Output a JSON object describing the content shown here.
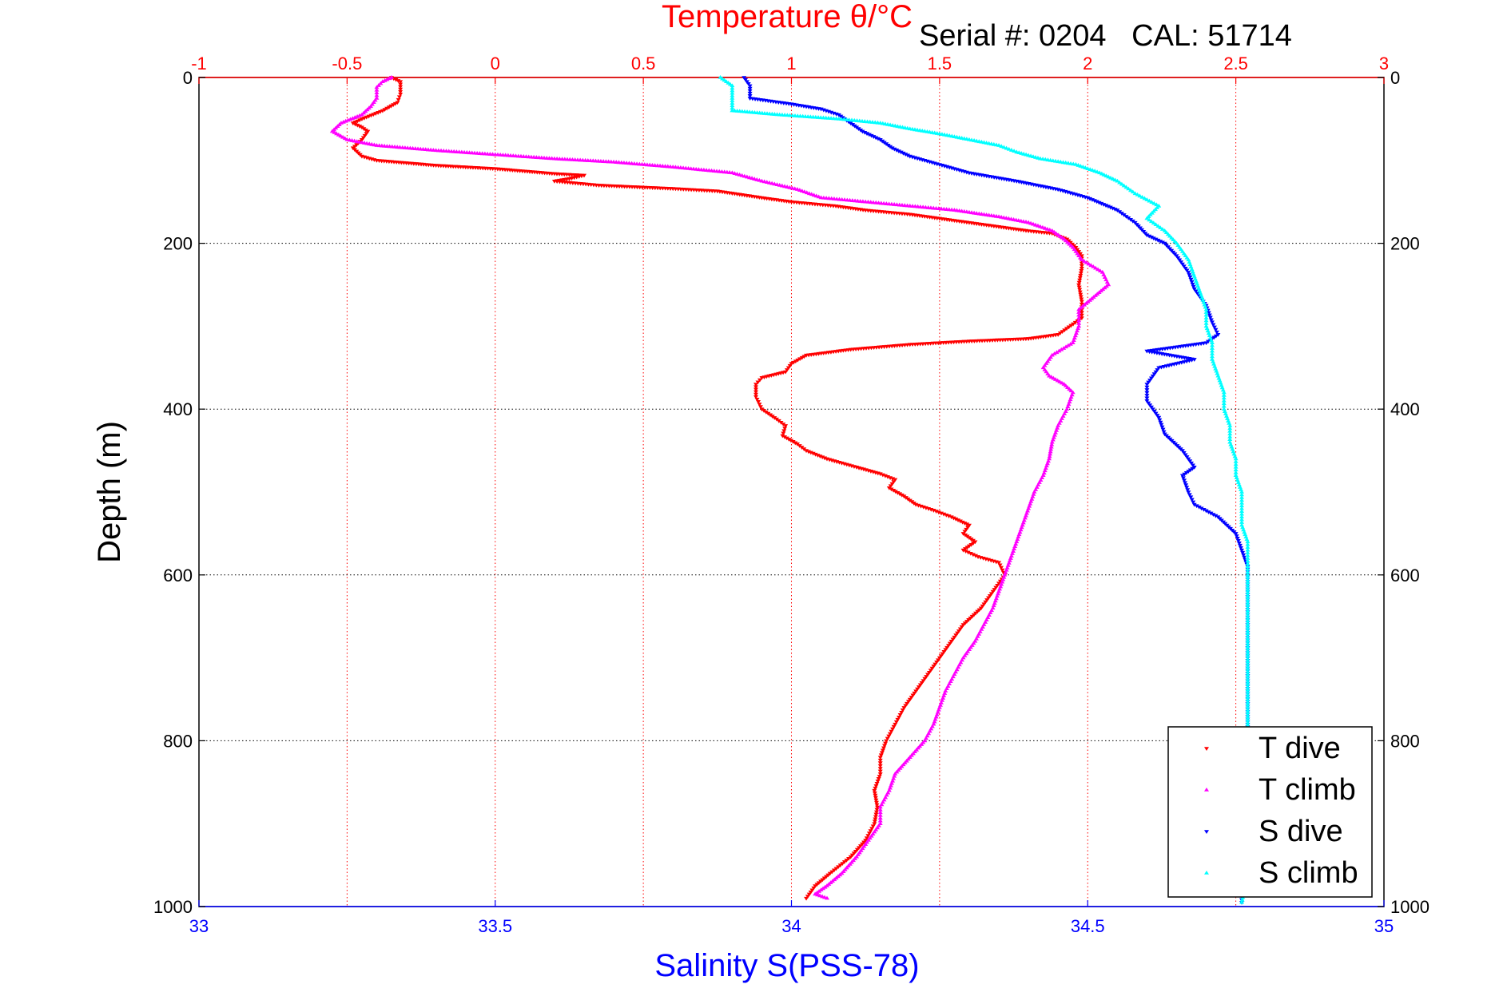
{
  "chart_data": {
    "type": "scatter",
    "top_axis": {
      "title": "Temperature θ/°C",
      "range": [
        -1,
        3
      ],
      "ticks": [
        -1,
        -0.5,
        0,
        0.5,
        1,
        1.5,
        2,
        2.5,
        3
      ],
      "tick_labels": [
        "-1",
        "-0.5",
        "0",
        "0.5",
        "1",
        "1.5",
        "2",
        "2.5",
        "3"
      ],
      "grid": true,
      "color": "#ff0000"
    },
    "bottom_axis": {
      "title": "Salinity S(PSS-78)",
      "range": [
        33,
        35
      ],
      "ticks": [
        33,
        33.5,
        34,
        34.5,
        35
      ],
      "tick_labels": [
        "33",
        "33.5",
        "34",
        "34.5",
        "35"
      ],
      "color": "#0000ff"
    },
    "y_axis": {
      "title": "Depth (m)",
      "range": [
        0,
        1000
      ],
      "inverted": true,
      "ticks": [
        0,
        200,
        400,
        600,
        800,
        1000
      ],
      "tick_labels": [
        "0",
        "200",
        "400",
        "600",
        "800",
        "1000"
      ],
      "grid": true
    },
    "annotation": "Serial #: 0204   CAL: 51714",
    "legend_position": "bottom-right",
    "series": [
      {
        "name": "T dive",
        "axis": "temperature",
        "color": "#ff0000",
        "marker": "triangle-down",
        "points": [
          [
            -0.35,
            0
          ],
          [
            -0.32,
            5
          ],
          [
            -0.32,
            20
          ],
          [
            -0.33,
            30
          ],
          [
            -0.38,
            40
          ],
          [
            -0.45,
            50
          ],
          [
            -0.48,
            55
          ],
          [
            -0.45,
            60
          ],
          [
            -0.43,
            65
          ],
          [
            -0.45,
            75
          ],
          [
            -0.48,
            85
          ],
          [
            -0.45,
            95
          ],
          [
            -0.4,
            100
          ],
          [
            -0.3,
            103
          ],
          [
            -0.2,
            106
          ],
          [
            -0.1,
            108
          ],
          [
            0,
            110
          ],
          [
            0.1,
            113
          ],
          [
            0.2,
            116
          ],
          [
            0.3,
            118
          ],
          [
            0.25,
            122
          ],
          [
            0.2,
            125
          ],
          [
            0.35,
            130
          ],
          [
            0.6,
            134
          ],
          [
            0.75,
            137
          ],
          [
            0.9,
            145
          ],
          [
            1.0,
            150
          ],
          [
            1.15,
            155
          ],
          [
            1.25,
            160
          ],
          [
            1.4,
            165
          ],
          [
            1.5,
            170
          ],
          [
            1.6,
            175
          ],
          [
            1.7,
            180
          ],
          [
            1.8,
            185
          ],
          [
            1.88,
            188
          ],
          [
            1.93,
            195
          ],
          [
            1.96,
            205
          ],
          [
            1.98,
            215
          ],
          [
            1.98,
            230
          ],
          [
            1.97,
            250
          ],
          [
            1.98,
            270
          ],
          [
            1.98,
            290
          ],
          [
            1.9,
            310
          ],
          [
            1.8,
            315
          ],
          [
            1.6,
            318
          ],
          [
            1.4,
            322
          ],
          [
            1.2,
            328
          ],
          [
            1.05,
            335
          ],
          [
            1.0,
            345
          ],
          [
            0.98,
            355
          ],
          [
            0.9,
            362
          ],
          [
            0.88,
            370
          ],
          [
            0.88,
            385
          ],
          [
            0.9,
            400
          ],
          [
            0.95,
            412
          ],
          [
            0.98,
            420
          ],
          [
            0.97,
            432
          ],
          [
            1.02,
            442
          ],
          [
            1.05,
            450
          ],
          [
            1.12,
            460
          ],
          [
            1.22,
            470
          ],
          [
            1.3,
            478
          ],
          [
            1.35,
            485
          ],
          [
            1.33,
            495
          ],
          [
            1.38,
            505
          ],
          [
            1.42,
            515
          ],
          [
            1.48,
            522
          ],
          [
            1.54,
            530
          ],
          [
            1.6,
            540
          ],
          [
            1.58,
            550
          ],
          [
            1.62,
            560
          ],
          [
            1.58,
            570
          ],
          [
            1.63,
            578
          ],
          [
            1.7,
            585
          ],
          [
            1.72,
            600
          ],
          [
            1.68,
            620
          ],
          [
            1.64,
            640
          ],
          [
            1.58,
            660
          ],
          [
            1.54,
            680
          ],
          [
            1.5,
            700
          ],
          [
            1.46,
            720
          ],
          [
            1.42,
            740
          ],
          [
            1.38,
            760
          ],
          [
            1.35,
            780
          ],
          [
            1.32,
            800
          ],
          [
            1.3,
            820
          ],
          [
            1.3,
            840
          ],
          [
            1.28,
            860
          ],
          [
            1.29,
            880
          ],
          [
            1.28,
            900
          ],
          [
            1.25,
            920
          ],
          [
            1.2,
            940
          ],
          [
            1.13,
            960
          ],
          [
            1.08,
            975
          ],
          [
            1.06,
            985
          ],
          [
            1.05,
            990
          ]
        ]
      },
      {
        "name": "T climb",
        "axis": "temperature",
        "color": "#ff00ff",
        "marker": "triangle-up",
        "points": [
          [
            -0.35,
            0
          ],
          [
            -0.38,
            5
          ],
          [
            -0.4,
            12
          ],
          [
            -0.4,
            25
          ],
          [
            -0.42,
            35
          ],
          [
            -0.45,
            45
          ],
          [
            -0.52,
            55
          ],
          [
            -0.55,
            65
          ],
          [
            -0.5,
            75
          ],
          [
            -0.4,
            82
          ],
          [
            -0.2,
            88
          ],
          [
            0,
            93
          ],
          [
            0.2,
            98
          ],
          [
            0.4,
            102
          ],
          [
            0.6,
            108
          ],
          [
            0.8,
            115
          ],
          [
            0.9,
            125
          ],
          [
            1.02,
            135
          ],
          [
            1.1,
            145
          ],
          [
            1.25,
            150
          ],
          [
            1.4,
            155
          ],
          [
            1.55,
            160
          ],
          [
            1.7,
            168
          ],
          [
            1.8,
            175
          ],
          [
            1.88,
            185
          ],
          [
            1.92,
            195
          ],
          [
            1.95,
            205
          ],
          [
            1.98,
            220
          ],
          [
            2.05,
            235
          ],
          [
            2.07,
            250
          ],
          [
            2.02,
            265
          ],
          [
            1.97,
            280
          ],
          [
            1.97,
            300
          ],
          [
            1.95,
            320
          ],
          [
            1.88,
            335
          ],
          [
            1.85,
            350
          ],
          [
            1.87,
            360
          ],
          [
            1.92,
            370
          ],
          [
            1.95,
            380
          ],
          [
            1.93,
            400
          ],
          [
            1.9,
            420
          ],
          [
            1.88,
            440
          ],
          [
            1.87,
            460
          ],
          [
            1.85,
            480
          ],
          [
            1.82,
            500
          ],
          [
            1.8,
            520
          ],
          [
            1.78,
            540
          ],
          [
            1.76,
            560
          ],
          [
            1.74,
            580
          ],
          [
            1.72,
            600
          ],
          [
            1.7,
            620
          ],
          [
            1.68,
            640
          ],
          [
            1.65,
            660
          ],
          [
            1.62,
            680
          ],
          [
            1.58,
            700
          ],
          [
            1.55,
            720
          ],
          [
            1.52,
            740
          ],
          [
            1.5,
            760
          ],
          [
            1.48,
            780
          ],
          [
            1.45,
            800
          ],
          [
            1.4,
            820
          ],
          [
            1.35,
            840
          ],
          [
            1.33,
            860
          ],
          [
            1.3,
            880
          ],
          [
            1.3,
            900
          ],
          [
            1.26,
            920
          ],
          [
            1.22,
            940
          ],
          [
            1.17,
            960
          ],
          [
            1.12,
            975
          ],
          [
            1.08,
            985
          ],
          [
            1.12,
            990
          ]
        ]
      },
      {
        "name": "S dive",
        "axis": "salinity",
        "color": "#0000ff",
        "marker": "triangle-down",
        "points": [
          [
            33.92,
            0
          ],
          [
            33.93,
            10
          ],
          [
            33.93,
            25
          ],
          [
            34.0,
            32
          ],
          [
            34.05,
            38
          ],
          [
            34.08,
            45
          ],
          [
            34.1,
            55
          ],
          [
            34.12,
            65
          ],
          [
            34.15,
            75
          ],
          [
            34.17,
            85
          ],
          [
            34.2,
            95
          ],
          [
            34.25,
            105
          ],
          [
            34.3,
            115
          ],
          [
            34.38,
            125
          ],
          [
            34.45,
            135
          ],
          [
            34.5,
            145
          ],
          [
            34.55,
            160
          ],
          [
            34.58,
            175
          ],
          [
            34.6,
            190
          ],
          [
            34.63,
            200
          ],
          [
            34.65,
            215
          ],
          [
            34.67,
            235
          ],
          [
            34.68,
            255
          ],
          [
            34.7,
            275
          ],
          [
            34.71,
            295
          ],
          [
            34.72,
            310
          ],
          [
            34.7,
            320
          ],
          [
            34.6,
            330
          ],
          [
            34.68,
            340
          ],
          [
            34.62,
            350
          ],
          [
            34.6,
            370
          ],
          [
            34.6,
            390
          ],
          [
            34.62,
            410
          ],
          [
            34.63,
            430
          ],
          [
            34.66,
            450
          ],
          [
            34.68,
            470
          ],
          [
            34.66,
            480
          ],
          [
            34.67,
            500
          ],
          [
            34.68,
            515
          ],
          [
            34.72,
            530
          ],
          [
            34.75,
            550
          ],
          [
            34.76,
            570
          ],
          [
            34.77,
            590
          ],
          [
            34.77,
            620
          ],
          [
            34.77,
            660
          ],
          [
            34.77,
            700
          ],
          [
            34.77,
            740
          ],
          [
            34.77,
            780
          ],
          [
            34.77,
            820
          ],
          [
            34.77,
            860
          ],
          [
            34.77,
            900
          ],
          [
            34.77,
            940
          ],
          [
            34.76,
            975
          ],
          [
            34.76,
            995
          ]
        ]
      },
      {
        "name": "S climb",
        "axis": "salinity",
        "color": "#00ffff",
        "marker": "triangle-up",
        "points": [
          [
            33.88,
            0
          ],
          [
            33.9,
            10
          ],
          [
            33.9,
            25
          ],
          [
            33.9,
            40
          ],
          [
            33.98,
            45
          ],
          [
            34.08,
            50
          ],
          [
            34.15,
            55
          ],
          [
            34.2,
            62
          ],
          [
            34.25,
            68
          ],
          [
            34.3,
            75
          ],
          [
            34.35,
            82
          ],
          [
            34.38,
            90
          ],
          [
            34.42,
            98
          ],
          [
            34.48,
            105
          ],
          [
            34.52,
            115
          ],
          [
            34.55,
            125
          ],
          [
            34.58,
            140
          ],
          [
            34.62,
            155
          ],
          [
            34.6,
            170
          ],
          [
            34.63,
            185
          ],
          [
            34.65,
            200
          ],
          [
            34.67,
            220
          ],
          [
            34.68,
            240
          ],
          [
            34.69,
            260
          ],
          [
            34.7,
            280
          ],
          [
            34.7,
            300
          ],
          [
            34.71,
            320
          ],
          [
            34.71,
            340
          ],
          [
            34.72,
            360
          ],
          [
            34.73,
            380
          ],
          [
            34.73,
            400
          ],
          [
            34.74,
            420
          ],
          [
            34.74,
            440
          ],
          [
            34.75,
            460
          ],
          [
            34.75,
            480
          ],
          [
            34.76,
            500
          ],
          [
            34.76,
            520
          ],
          [
            34.76,
            540
          ],
          [
            34.77,
            560
          ],
          [
            34.77,
            580
          ],
          [
            34.77,
            600
          ],
          [
            34.77,
            640
          ],
          [
            34.77,
            680
          ],
          [
            34.77,
            720
          ],
          [
            34.77,
            760
          ],
          [
            34.77,
            800
          ],
          [
            34.77,
            840
          ],
          [
            34.77,
            880
          ],
          [
            34.77,
            920
          ],
          [
            34.77,
            960
          ],
          [
            34.76,
            995
          ]
        ]
      }
    ]
  }
}
